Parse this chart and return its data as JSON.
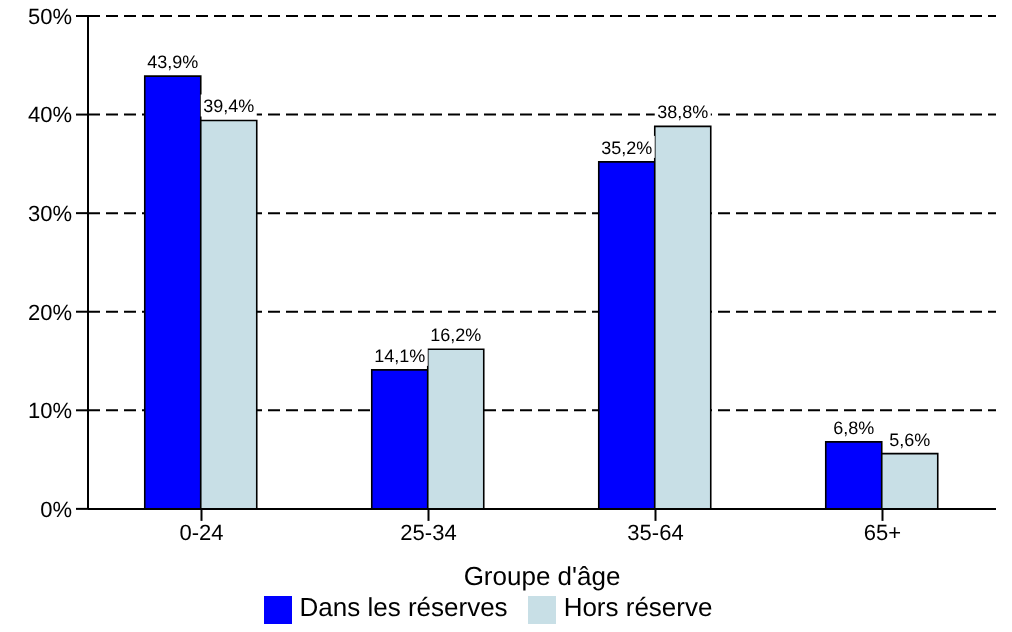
{
  "chart_data": {
    "type": "bar",
    "xlabel": "Groupe d'âge",
    "categories": [
      "0-24",
      "25-34",
      "35-64",
      "65+"
    ],
    "series": [
      {
        "name": "Dans les réserves",
        "color": "#0000ff",
        "values": [
          43.9,
          14.1,
          35.2,
          6.8
        ],
        "value_labels": [
          "43,9%",
          "14,1%",
          "35,2%",
          "6,8%"
        ]
      },
      {
        "name": "Hors réserve",
        "color": "#c8dfe6",
        "values": [
          39.4,
          16.2,
          38.8,
          5.6
        ],
        "value_labels": [
          "39,4%",
          "16,2%",
          "38,8%",
          "5,6%"
        ]
      }
    ],
    "ylim": [
      0,
      50
    ],
    "yticks": [
      {
        "value": 0,
        "label": "0%"
      },
      {
        "value": 10,
        "label": "10%"
      },
      {
        "value": 20,
        "label": "20%"
      },
      {
        "value": 30,
        "label": "30%"
      },
      {
        "value": 40,
        "label": "40%"
      },
      {
        "value": 50,
        "label": "50%"
      }
    ],
    "grid": "y",
    "legend": "bottom"
  }
}
